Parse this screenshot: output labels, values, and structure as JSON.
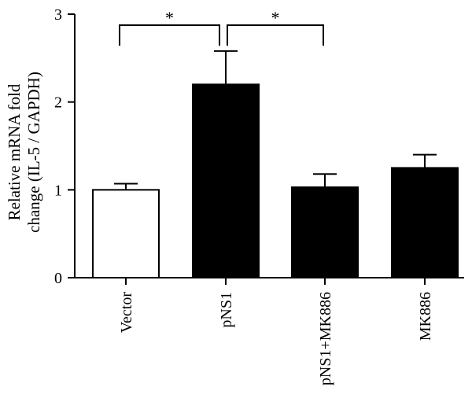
{
  "chart_data": {
    "type": "bar",
    "categories": [
      "Vector",
      "pNS1",
      "pNS1+MK886",
      "MK886"
    ],
    "values": [
      1.0,
      2.2,
      1.03,
      1.25
    ],
    "errors": [
      0.07,
      0.38,
      0.15,
      0.15
    ],
    "bar_colors": [
      "#ffffff",
      "#000000",
      "#000000",
      "#000000"
    ],
    "ylabel_lines": [
      "Relative mRNA fold",
      "change (IL-5 / GAPDH)"
    ],
    "ylim": [
      0,
      3
    ],
    "yticks": [
      0,
      1,
      2,
      3
    ],
    "ytick_labels": [
      "0",
      "1",
      "2",
      "3"
    ],
    "grid": false,
    "significance": [
      {
        "from": 0,
        "to": 1,
        "label": "*"
      },
      {
        "from": 1,
        "to": 2,
        "label": "*"
      }
    ]
  }
}
